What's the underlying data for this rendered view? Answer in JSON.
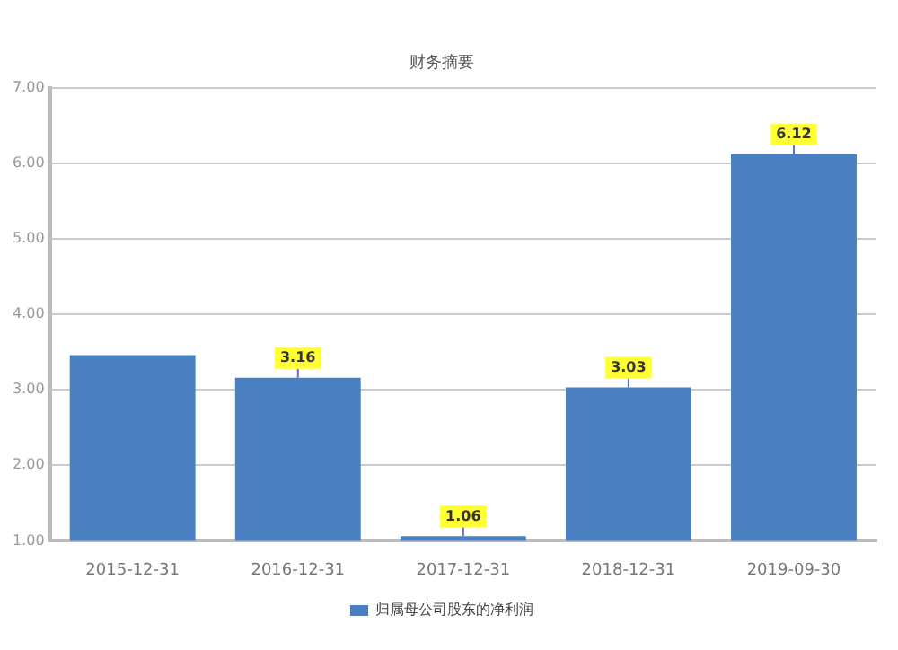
{
  "chart_data": {
    "type": "bar",
    "title": "财务摘要",
    "categories": [
      "2015-12-31",
      "2016-12-31",
      "2017-12-31",
      "2018-12-31",
      "2019-09-30"
    ],
    "series": [
      {
        "name": "归属母公司股东的净利润",
        "color": "#4a80c2",
        "values": [
          3.46,
          3.16,
          1.06,
          3.03,
          6.12
        ],
        "value_labels": [
          null,
          "3.16",
          "1.06",
          "3.03",
          "6.12"
        ]
      }
    ],
    "ylim": [
      1,
      7
    ],
    "yticks": [
      {
        "value": 1,
        "label": "1.00"
      },
      {
        "value": 2,
        "label": "2.00"
      },
      {
        "value": 3,
        "label": "3.00"
      },
      {
        "value": 4,
        "label": "4.00"
      },
      {
        "value": 5,
        "label": "5.00"
      },
      {
        "value": 6,
        "label": "6.00"
      },
      {
        "value": 7,
        "label": "7.00"
      }
    ],
    "grid": "y",
    "legend": "bottom"
  }
}
